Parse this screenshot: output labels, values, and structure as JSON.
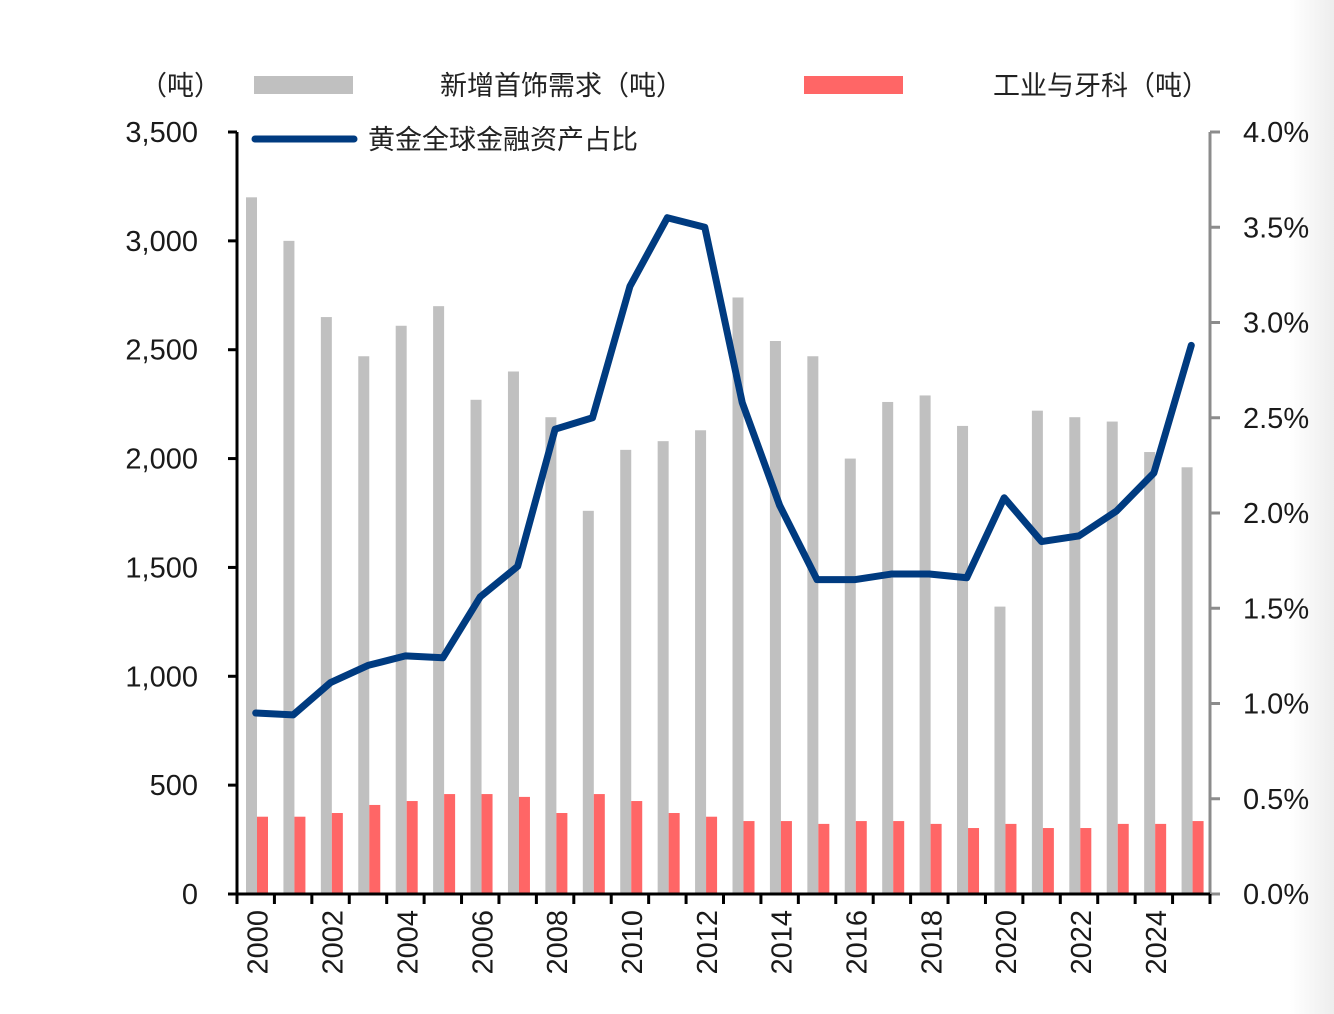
{
  "chart_data": {
    "type": "bar+line",
    "title": "",
    "left_axis_unit": "（吨）",
    "left_ylim": [
      0,
      3500
    ],
    "left_ticks": [
      "0",
      "500",
      "1,000",
      "1,500",
      "2,000",
      "2,500",
      "3,000",
      "3,500"
    ],
    "left_tick_values": [
      0,
      500,
      1000,
      1500,
      2000,
      2500,
      3000,
      3500
    ],
    "right_ylim": [
      0,
      4.0
    ],
    "right_ticks": [
      "0.0%",
      "0.5%",
      "1.0%",
      "1.5%",
      "2.0%",
      "2.5%",
      "3.0%",
      "3.5%",
      "4.0%"
    ],
    "right_tick_values": [
      0,
      0.5,
      1.0,
      1.5,
      2.0,
      2.5,
      3.0,
      3.5,
      4.0
    ],
    "categories": [
      "2000",
      "2001",
      "2002",
      "2003",
      "2004",
      "2005",
      "2006",
      "2007",
      "2008",
      "2009",
      "2010",
      "2011",
      "2012",
      "2013",
      "2014",
      "2015",
      "2016",
      "2017",
      "2018",
      "2019",
      "2020",
      "2021",
      "2022",
      "2023",
      "2024",
      "2025"
    ],
    "x_tick_labels": [
      "2000",
      "2002",
      "2004",
      "2006",
      "2008",
      "2010",
      "2012",
      "2014",
      "2016",
      "2018",
      "2020",
      "2022",
      "2024"
    ],
    "legend_position": "top",
    "series": [
      {
        "name": "新增首饰需求（吨）",
        "type": "bar",
        "axis": "left",
        "color": "#c0c0c0",
        "values": [
          3200,
          3000,
          2650,
          2470,
          2610,
          2700,
          2270,
          2400,
          2190,
          1760,
          2040,
          2080,
          2130,
          2740,
          2540,
          2470,
          2000,
          2260,
          2290,
          2150,
          1320,
          2220,
          2190,
          2170,
          2030,
          1960
        ]
      },
      {
        "name": "工业与牙科（吨）",
        "type": "bar",
        "axis": "left",
        "color": "#ff6666",
        "values": [
          355,
          355,
          372,
          409,
          427,
          459,
          459,
          446,
          372,
          459,
          427,
          372,
          355,
          335,
          335,
          322,
          335,
          335,
          322,
          303,
          322,
          303,
          303,
          322,
          322,
          335
        ]
      },
      {
        "name": "黄金全球金融资产占比",
        "type": "line",
        "axis": "right",
        "unit": "%",
        "color": "#003b80",
        "values": [
          0.95,
          0.94,
          1.11,
          1.2,
          1.25,
          1.24,
          1.56,
          1.72,
          2.44,
          2.5,
          3.19,
          3.55,
          3.5,
          2.58,
          2.04,
          1.65,
          1.65,
          1.68,
          1.68,
          1.66,
          2.08,
          1.85,
          1.88,
          2.01,
          2.21,
          2.88
        ]
      }
    ]
  }
}
